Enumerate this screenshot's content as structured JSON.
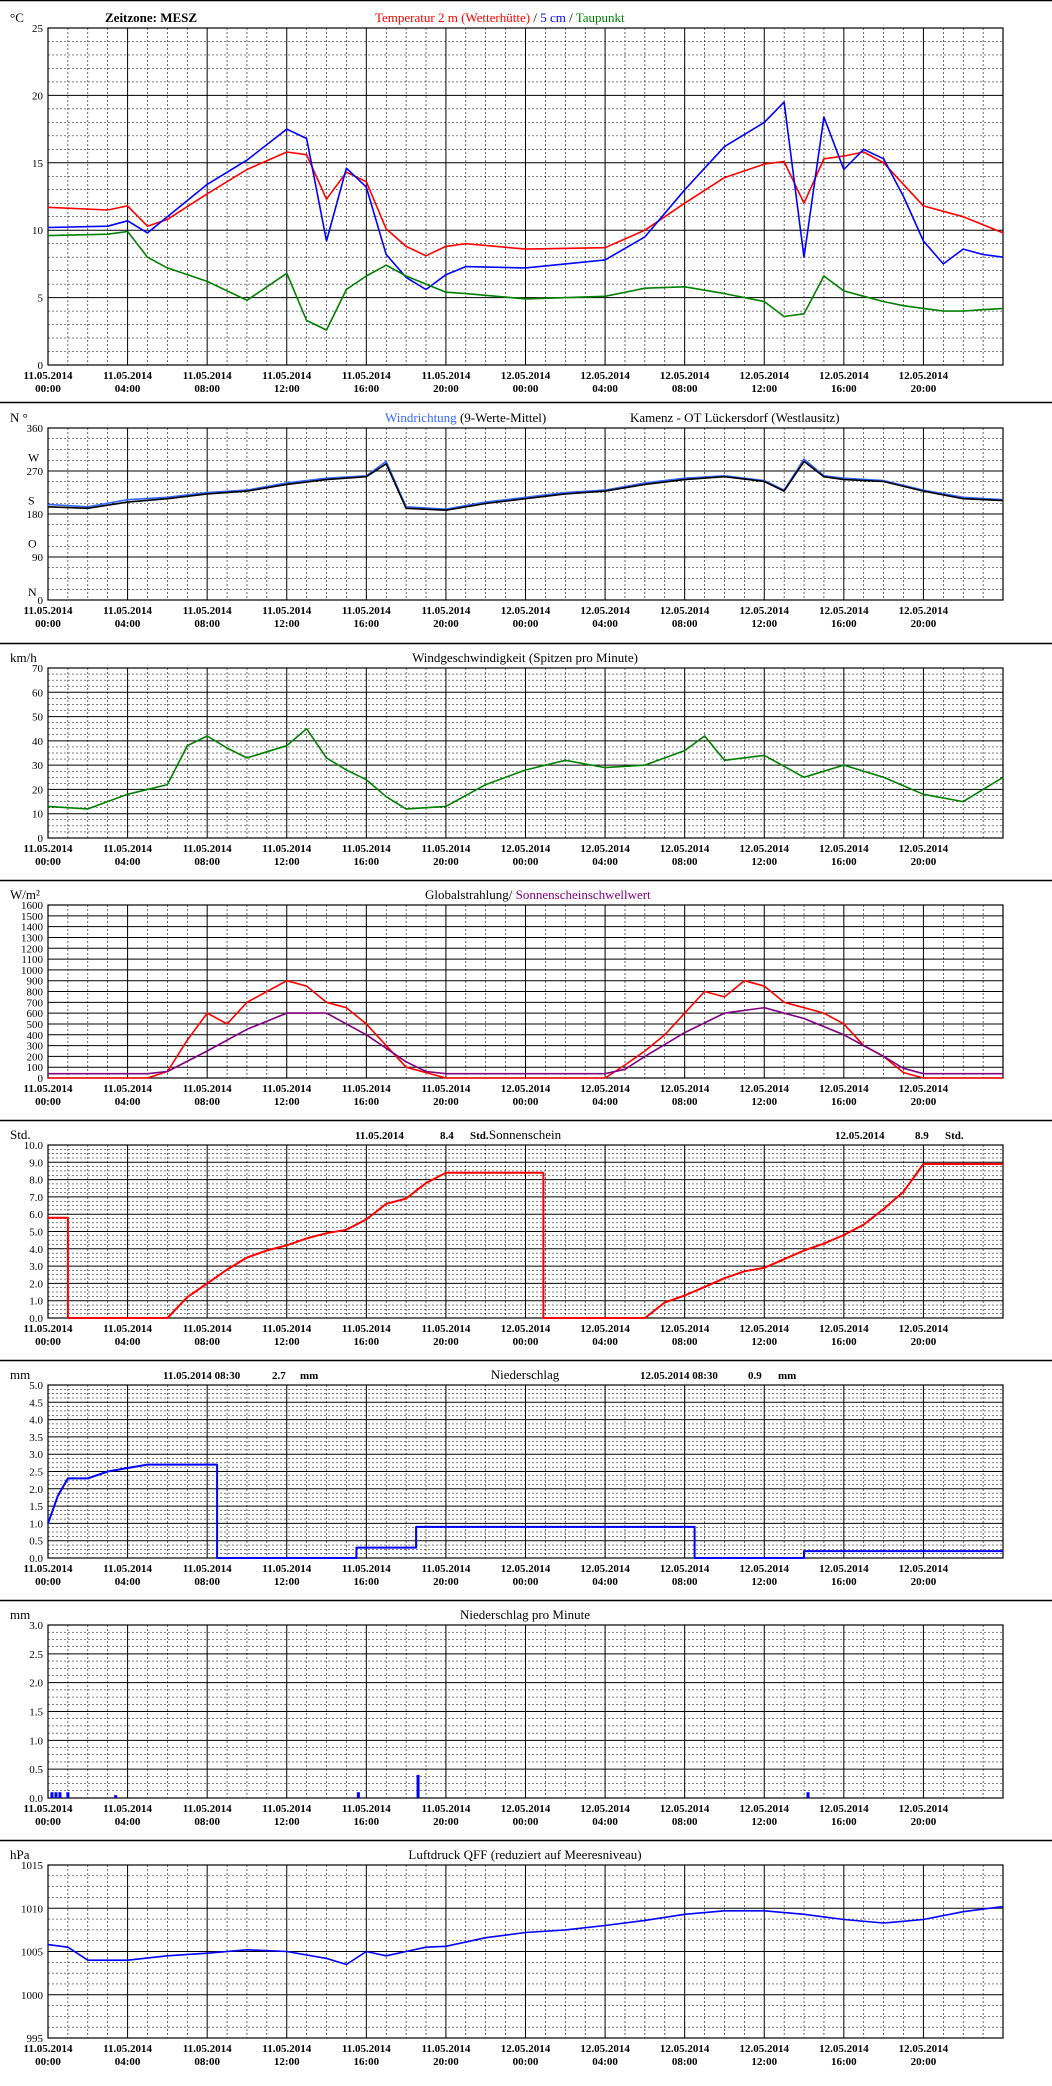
{
  "chart_data": [
    {
      "type": "line",
      "unit": "°C",
      "timezone": "Zeitzone: MESZ",
      "title_parts": [
        {
          "text": "Temperatur 2 m (Wetterhütte)",
          "color": "#ff0000"
        },
        {
          "text": "  /  ",
          "color": "#000000"
        },
        {
          "text": "5 cm",
          "color": "#0000ff"
        },
        {
          "text": " / ",
          "color": "#000000"
        },
        {
          "text": "Taupunkt",
          "color": "#008000"
        }
      ],
      "ylim": [
        0,
        25
      ],
      "yticks": [
        "0",
        "5",
        "10",
        "15",
        "20",
        "25"
      ],
      "grid": true,
      "series": [
        {
          "color": "#ff0000",
          "x": [
            0,
            3,
            4,
            5,
            6,
            8,
            10,
            12,
            13,
            14,
            15,
            16,
            17,
            18,
            19,
            20,
            21,
            24,
            28,
            30,
            32,
            34,
            36,
            37,
            38,
            39,
            40,
            41,
            42,
            43,
            44,
            45,
            46,
            47,
            48
          ],
          "y": [
            11.7,
            11.5,
            11.8,
            10.3,
            10.8,
            12.7,
            14.5,
            15.8,
            15.6,
            12.3,
            14.3,
            13.6,
            10.1,
            8.8,
            8.1,
            8.8,
            9.0,
            8.6,
            8.7,
            10.0,
            12.0,
            13.9,
            14.9,
            15.1,
            12.0,
            15.3,
            15.5,
            15.8,
            15.0,
            13.4,
            11.8,
            11.4,
            11.0,
            10.4,
            9.8
          ]
        },
        {
          "color": "#0000ff",
          "x": [
            0,
            3,
            4,
            5,
            6,
            8,
            10,
            12,
            13,
            14,
            15,
            16,
            17,
            18,
            19,
            20,
            21,
            24,
            28,
            30,
            32,
            34,
            36,
            37,
            38,
            39,
            40,
            41,
            42,
            43,
            44,
            45,
            46,
            47,
            48
          ],
          "y": [
            10.2,
            10.3,
            10.7,
            9.8,
            11.0,
            13.4,
            15.2,
            17.5,
            16.8,
            9.2,
            14.6,
            13.2,
            8.2,
            6.5,
            5.6,
            6.7,
            7.3,
            7.2,
            7.8,
            9.5,
            13.0,
            16.2,
            18.0,
            19.5,
            8.0,
            18.4,
            14.5,
            16.0,
            15.3,
            12.5,
            9.2,
            7.5,
            8.6,
            8.2,
            8.0
          ]
        },
        {
          "color": "#008000",
          "x": [
            0,
            3,
            4,
            5,
            6,
            8,
            10,
            12,
            13,
            14,
            15,
            16,
            17,
            18,
            19,
            20,
            21,
            24,
            28,
            30,
            32,
            34,
            36,
            37,
            38,
            39,
            40,
            41,
            42,
            43,
            44,
            45,
            46,
            47,
            48
          ],
          "y": [
            9.6,
            9.7,
            9.9,
            8.0,
            7.2,
            6.2,
            4.8,
            6.8,
            3.3,
            2.6,
            5.6,
            6.6,
            7.4,
            6.6,
            6.0,
            5.4,
            5.3,
            4.9,
            5.1,
            5.7,
            5.8,
            5.3,
            4.7,
            3.6,
            3.8,
            6.6,
            5.5,
            5.1,
            4.7,
            4.4,
            4.2,
            4.0,
            4.0,
            4.1,
            4.2
          ]
        }
      ]
    },
    {
      "type": "line",
      "unit": "N °",
      "title_parts": [
        {
          "text": "Windrichtung",
          "color": "#3366ff"
        },
        {
          "text": " (9-Werte-Mittel)",
          "color": "#000000"
        }
      ],
      "station": "Kamenz - OT Lückersdorf (Westlausitz)",
      "ylim": [
        0,
        360
      ],
      "yticks": [
        "0",
        "90",
        "180",
        "270",
        "360"
      ],
      "direction_labels": [
        "N",
        "O",
        "S",
        "W"
      ],
      "grid": true,
      "series": [
        {
          "color": "#3366ff",
          "x": [
            0,
            2,
            4,
            6,
            8,
            10,
            12,
            14,
            16,
            17,
            18,
            20,
            22,
            24,
            26,
            28,
            30,
            32,
            34,
            36,
            37,
            38,
            39,
            40,
            42,
            44,
            46,
            48
          ],
          "y": [
            200,
            195,
            210,
            215,
            225,
            230,
            245,
            255,
            260,
            290,
            195,
            190,
            205,
            215,
            225,
            230,
            245,
            255,
            260,
            250,
            230,
            295,
            260,
            255,
            250,
            230,
            215,
            210
          ]
        },
        {
          "color": "#000000",
          "x": [
            0,
            2,
            4,
            6,
            8,
            10,
            12,
            14,
            16,
            17,
            18,
            20,
            22,
            24,
            26,
            28,
            30,
            32,
            34,
            36,
            37,
            38,
            39,
            40,
            42,
            44,
            46,
            48
          ],
          "y": [
            195,
            192,
            205,
            212,
            222,
            228,
            242,
            252,
            258,
            285,
            192,
            188,
            202,
            212,
            222,
            228,
            242,
            252,
            258,
            248,
            228,
            290,
            258,
            252,
            248,
            228,
            212,
            208
          ]
        }
      ]
    },
    {
      "type": "line",
      "unit": "km/h",
      "title": "Windgeschwindigkeit (Spitzen pro Minute)",
      "ylim": [
        0,
        70
      ],
      "yticks": [
        "0",
        "10",
        "20",
        "30",
        "40",
        "50",
        "60",
        "70"
      ],
      "grid": true,
      "series": [
        {
          "color": "#008000",
          "x": [
            0,
            2,
            4,
            6,
            7,
            8,
            9,
            10,
            12,
            13,
            14,
            15,
            16,
            17,
            18,
            20,
            22,
            24,
            26,
            28,
            30,
            32,
            33,
            34,
            36,
            38,
            40,
            42,
            44,
            46,
            48
          ],
          "y": [
            13,
            12,
            18,
            22,
            38,
            42,
            37,
            33,
            38,
            45,
            33,
            28,
            24,
            17,
            12,
            13,
            22,
            28,
            32,
            29,
            30,
            36,
            42,
            32,
            34,
            25,
            30,
            25,
            18,
            15,
            25
          ]
        }
      ]
    },
    {
      "type": "line",
      "unit": "W/m²",
      "title_parts": [
        {
          "text": "Globalstrahlung/ ",
          "color": "#000000"
        },
        {
          "text": "Sonnenscheinschwellwert",
          "color": "#800080"
        }
      ],
      "ylim": [
        0,
        1600
      ],
      "yticks": [
        "0",
        "100",
        "200",
        "300",
        "400",
        "500",
        "600",
        "700",
        "800",
        "900",
        "1000",
        "1100",
        "1200",
        "1300",
        "1400",
        "1500",
        "1600"
      ],
      "grid": true,
      "series": [
        {
          "color": "#ff0000",
          "x": [
            0,
            5,
            6,
            7,
            8,
            9,
            10,
            11,
            12,
            13,
            14,
            15,
            16,
            17,
            18,
            20,
            28,
            29,
            30,
            31,
            32,
            33,
            34,
            35,
            36,
            37,
            38,
            39,
            40,
            41,
            42,
            43,
            44,
            48
          ],
          "y": [
            0,
            0,
            60,
            350,
            600,
            500,
            700,
            800,
            900,
            850,
            700,
            650,
            500,
            300,
            100,
            0,
            0,
            120,
            250,
            400,
            600,
            800,
            750,
            900,
            850,
            700,
            650,
            600,
            500,
            300,
            200,
            50,
            0,
            0
          ]
        },
        {
          "color": "#800080",
          "x": [
            0,
            5,
            6,
            8,
            10,
            12,
            14,
            16,
            18,
            19,
            20,
            28,
            29,
            30,
            32,
            34,
            36,
            38,
            40,
            42,
            43,
            44,
            48
          ],
          "y": [
            40,
            40,
            60,
            250,
            450,
            600,
            600,
            400,
            150,
            60,
            40,
            40,
            80,
            200,
            420,
            600,
            650,
            550,
            400,
            200,
            90,
            40,
            40
          ]
        }
      ]
    },
    {
      "type": "line",
      "unit": "Std.",
      "title": "Sonnenschein",
      "day_totals": [
        {
          "date": "11.05.2014",
          "value": "8.4",
          "unit": "Std."
        },
        {
          "date": "12.05.2014",
          "value": "8.9",
          "unit": "Std."
        }
      ],
      "ylim": [
        0,
        10
      ],
      "yticks": [
        "0.0",
        "1.0",
        "2.0",
        "3.0",
        "4.0",
        "5.0",
        "6.0",
        "7.0",
        "8.0",
        "9.0",
        "10.0"
      ],
      "grid": true,
      "series": [
        {
          "color": "#ff0000",
          "x": [
            0,
            1,
            1,
            6,
            7,
            8,
            9,
            10,
            11,
            12,
            13,
            14,
            15,
            16,
            17,
            18,
            19,
            20,
            24.9,
            24.9,
            30,
            31,
            32,
            33,
            34,
            35,
            36,
            37,
            38,
            39,
            40,
            41,
            42,
            43,
            44,
            48
          ],
          "y": [
            5.8,
            5.8,
            0,
            0,
            1.2,
            2.0,
            2.8,
            3.5,
            3.9,
            4.2,
            4.6,
            4.9,
            5.1,
            5.7,
            6.6,
            6.9,
            7.8,
            8.4,
            8.4,
            0,
            0,
            0.9,
            1.3,
            1.8,
            2.3,
            2.7,
            2.9,
            3.4,
            3.9,
            4.3,
            4.8,
            5.4,
            6.3,
            7.3,
            8.9,
            8.9
          ]
        }
      ]
    },
    {
      "type": "line",
      "unit": "mm",
      "title": "Niederschlag",
      "day_totals": [
        {
          "date": "11.05.2014 08:30",
          "value": "2.7",
          "unit": "mm"
        },
        {
          "date": "12.05.2014 08:30",
          "value": "0.9",
          "unit": "mm"
        }
      ],
      "ylim": [
        0,
        5
      ],
      "yticks": [
        "0.0",
        "0.5",
        "1.0",
        "1.5",
        "2.0",
        "2.5",
        "3.0",
        "3.5",
        "4.0",
        "4.5",
        "5.0"
      ],
      "grid": true,
      "series": [
        {
          "color": "#0000ff",
          "x": [
            0,
            0.5,
            1,
            2,
            3,
            4,
            5,
            6,
            8.5,
            8.5,
            15.5,
            15.5,
            18.5,
            18.5,
            32.5,
            32.5,
            38,
            38,
            48
          ],
          "y": [
            1.0,
            1.8,
            2.3,
            2.3,
            2.5,
            2.6,
            2.7,
            2.7,
            2.7,
            0.0,
            0.0,
            0.3,
            0.3,
            0.9,
            0.9,
            0.0,
            0.0,
            0.2,
            0.2
          ]
        }
      ]
    },
    {
      "type": "bar",
      "unit": "mm",
      "title": "Niederschlag pro Minute",
      "ylim": [
        0,
        3
      ],
      "yticks": [
        "0.0",
        "0.5",
        "1.0",
        "1.5",
        "2.0",
        "2.5",
        "3.0"
      ],
      "grid": true,
      "series": [
        {
          "color": "#0000ff",
          "x": [
            0.2,
            0.4,
            0.6,
            1.0,
            3.4,
            15.6,
            18.6,
            38.2
          ],
          "y": [
            0.1,
            0.1,
            0.1,
            0.1,
            0.05,
            0.1,
            0.4,
            0.1
          ]
        }
      ]
    },
    {
      "type": "line",
      "unit": "hPa",
      "title": "Luftdruck QFF (reduziert auf Meeresniveau)",
      "ylim": [
        995,
        1015
      ],
      "yticks": [
        "995",
        "1000",
        "1005",
        "1010",
        "1015"
      ],
      "grid": true,
      "series": [
        {
          "color": "#0000ff",
          "x": [
            0,
            1,
            2,
            4,
            6,
            8,
            10,
            12,
            14,
            15,
            16,
            17,
            18,
            19,
            20,
            22,
            24,
            26,
            28,
            30,
            32,
            34,
            36,
            38,
            40,
            42,
            44,
            46,
            48
          ],
          "y": [
            1005.8,
            1005.5,
            1004.0,
            1004.0,
            1004.5,
            1004.8,
            1005.2,
            1005.0,
            1004.2,
            1003.5,
            1005.0,
            1004.5,
            1005.0,
            1005.5,
            1005.6,
            1006.6,
            1007.2,
            1007.5,
            1008.0,
            1008.6,
            1009.3,
            1009.7,
            1009.7,
            1009.3,
            1008.7,
            1008.3,
            1008.7,
            1009.6,
            1010.2
          ]
        }
      ]
    }
  ],
  "time_axis": {
    "dates": [
      "11.05.2014",
      "11.05.2014",
      "11.05.2014",
      "11.05.2014",
      "11.05.2014",
      "11.05.2014",
      "12.05.2014",
      "12.05.2014",
      "12.05.2014",
      "12.05.2014",
      "12.05.2014",
      "12.05.2014"
    ],
    "times": [
      "00:00",
      "04:00",
      "08:00",
      "12:00",
      "16:00",
      "20:00",
      "00:00",
      "04:00",
      "08:00",
      "12:00",
      "16:00",
      "20:00"
    ],
    "x_hours": [
      0,
      4,
      8,
      12,
      16,
      20,
      24,
      28,
      32,
      36,
      40,
      44
    ],
    "xlim": [
      0,
      48
    ]
  }
}
